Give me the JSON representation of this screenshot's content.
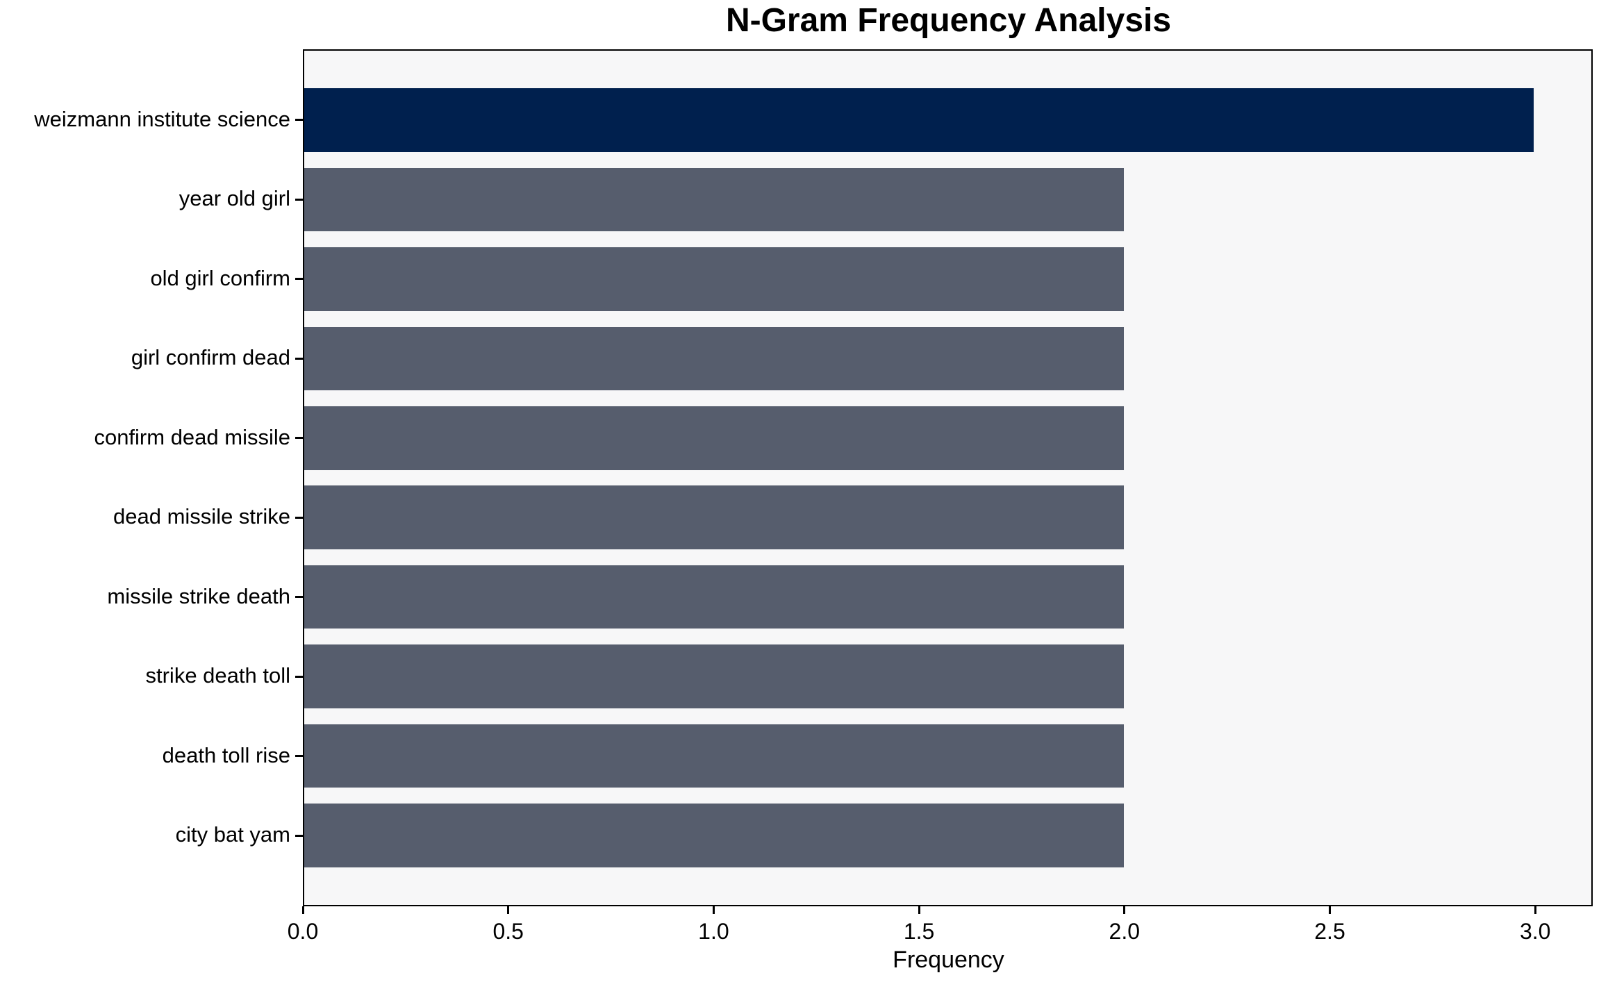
{
  "chart_data": {
    "type": "bar",
    "orientation": "horizontal",
    "title": "N-Gram Frequency Analysis",
    "xlabel": "Frequency",
    "ylabel": "",
    "categories": [
      "weizmann institute science",
      "year old girl",
      "old girl confirm",
      "girl confirm dead",
      "confirm dead missile",
      "dead missile strike",
      "missile strike death",
      "strike death toll",
      "death toll rise",
      "city bat yam"
    ],
    "values": [
      3,
      2,
      2,
      2,
      2,
      2,
      2,
      2,
      2,
      2
    ],
    "bar_colors": [
      "#00204e",
      "#565d6d",
      "#565d6d",
      "#565d6d",
      "#565d6d",
      "#565d6d",
      "#565d6d",
      "#565d6d",
      "#565d6d",
      "#565d6d"
    ],
    "x_ticks": [
      {
        "value": 0.0,
        "label": "0.0"
      },
      {
        "value": 0.5,
        "label": "0.5"
      },
      {
        "value": 1.0,
        "label": "1.0"
      },
      {
        "value": 1.5,
        "label": "1.5"
      },
      {
        "value": 2.0,
        "label": "2.0"
      },
      {
        "value": 2.5,
        "label": "2.5"
      },
      {
        "value": 3.0,
        "label": "3.0"
      }
    ],
    "xlim": [
      0,
      3.14
    ],
    "grid": false,
    "legend": null,
    "colors": {
      "highlight_bar": "#00204e",
      "default_bar": "#565d6d",
      "plot_background": "#f7f7f8",
      "figure_background": "#ffffff",
      "axis": "#000000",
      "text": "#000000"
    }
  }
}
